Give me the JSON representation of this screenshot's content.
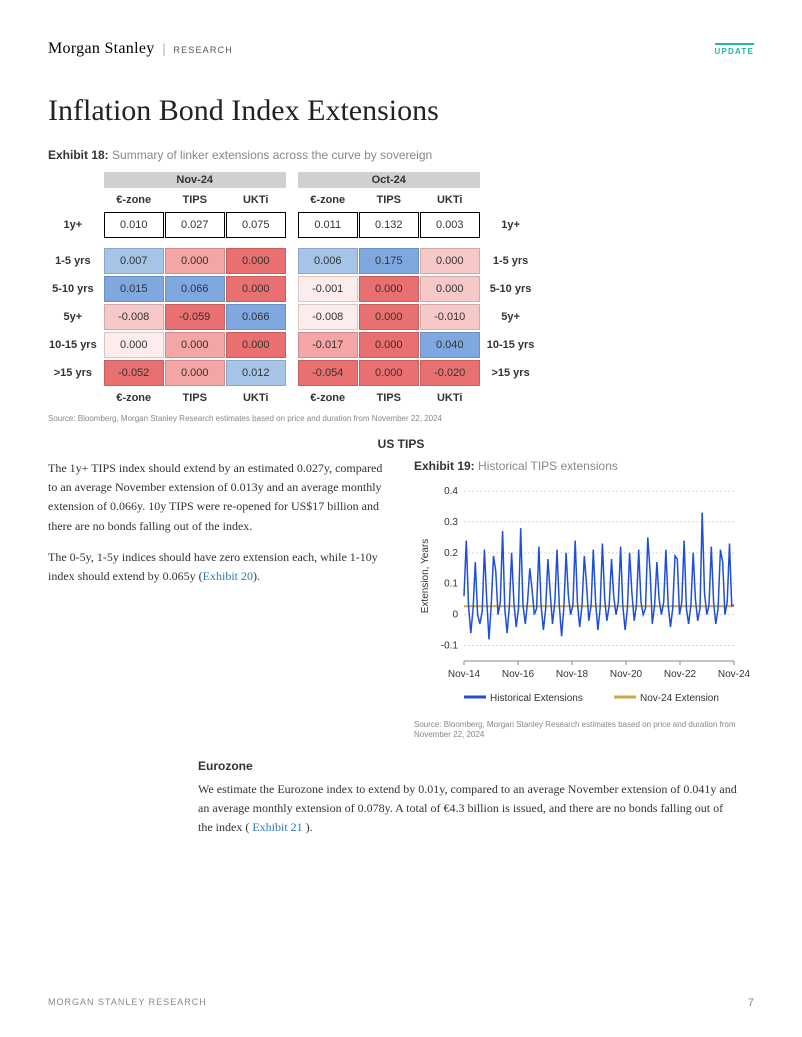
{
  "header": {
    "brand": "Morgan Stanley",
    "sub": "RESEARCH",
    "badge": "UPDATE"
  },
  "title": "Inflation Bond Index Extensions",
  "exhibit18": {
    "label_bold": "Exhibit 18:",
    "label_rest": "Summary of linker extensions across the curve by sovereign",
    "months": [
      "Nov-24",
      "Oct-24"
    ],
    "columns": [
      "€-zone",
      "TIPS",
      "UKTi"
    ],
    "row_labels": [
      "1y+",
      "1-5 yrs",
      "5-10 yrs",
      "5y+",
      "10-15 yrs",
      ">15 yrs"
    ],
    "top_row": {
      "nov": [
        "0.010",
        "0.027",
        "0.075"
      ],
      "oct": [
        "0.011",
        "0.132",
        "0.003"
      ]
    },
    "rows": [
      {
        "nov": [
          {
            "v": "0.007",
            "c": "#a6c4e8"
          },
          {
            "v": "0.000",
            "c": "#f4a6a6"
          },
          {
            "v": "0.000",
            "c": "#e87070"
          }
        ],
        "oct": [
          {
            "v": "0.006",
            "c": "#a6c4e8"
          },
          {
            "v": "0.175",
            "c": "#7fa8e0"
          },
          {
            "v": "0.000",
            "c": "#f6c8c8"
          }
        ]
      },
      {
        "nov": [
          {
            "v": "0.015",
            "c": "#7fa8e0"
          },
          {
            "v": "0.066",
            "c": "#7fa8e0"
          },
          {
            "v": "0.000",
            "c": "#e87070"
          }
        ],
        "oct": [
          {
            "v": "-0.001",
            "c": "#fdecec"
          },
          {
            "v": "0.000",
            "c": "#e87070"
          },
          {
            "v": "0.000",
            "c": "#f6c8c8"
          }
        ]
      },
      {
        "nov": [
          {
            "v": "-0.008",
            "c": "#f6c8c8"
          },
          {
            "v": "-0.059",
            "c": "#e87070"
          },
          {
            "v": "0.066",
            "c": "#7fa8e0"
          }
        ],
        "oct": [
          {
            "v": "-0.008",
            "c": "#fdecec"
          },
          {
            "v": "0.000",
            "c": "#e87070"
          },
          {
            "v": "-0.010",
            "c": "#f6c8c8"
          }
        ]
      },
      {
        "nov": [
          {
            "v": "0.000",
            "c": "#fdecec"
          },
          {
            "v": "0.000",
            "c": "#f4a6a6"
          },
          {
            "v": "0.000",
            "c": "#e87070"
          }
        ],
        "oct": [
          {
            "v": "-0.017",
            "c": "#f4a6a6"
          },
          {
            "v": "0.000",
            "c": "#e87070"
          },
          {
            "v": "0.040",
            "c": "#7fa8e0"
          }
        ]
      },
      {
        "nov": [
          {
            "v": "-0.052",
            "c": "#e87070"
          },
          {
            "v": "0.000",
            "c": "#f4a6a6"
          },
          {
            "v": "0.012",
            "c": "#a6c4e8"
          }
        ],
        "oct": [
          {
            "v": "-0.054",
            "c": "#e87070"
          },
          {
            "v": "0.000",
            "c": "#e87070"
          },
          {
            "v": "-0.020",
            "c": "#e87070"
          }
        ]
      }
    ],
    "source": "Source: Bloomberg, Morgan Stanley Research estimates based on price and duration from November 22, 2024"
  },
  "ustips": {
    "heading": "US TIPS",
    "p1": "The 1y+ TIPS index should extend by an estimated 0.027y, compared to an average November extension of 0.013y and an average monthly extension of 0.066y. 10y TIPS were re-opened for US$17 billion and there are no bonds falling out of the index.",
    "p2a": "The 0-5y, 1-5y indices should have zero extension each, while 1-10y index should extend by 0.065y (",
    "p2link": "Exhibit 20",
    "p2b": ")."
  },
  "exhibit19": {
    "label_bold": "Exhibit 19:",
    "label_rest": "Historical TIPS extensions",
    "type": "line",
    "y_label": "Extension, Years",
    "y_ticks": [
      "-0.1",
      "0",
      "0.1",
      "0.2",
      "0.3",
      "0.4"
    ],
    "ylim": [
      -0.15,
      0.4
    ],
    "x_ticks": [
      "Nov-14",
      "Nov-16",
      "Nov-18",
      "Nov-20",
      "Nov-22",
      "Nov-24"
    ],
    "legend": [
      {
        "label": "Historical Extensions",
        "color": "#1f4fd6"
      },
      {
        "label": "Nov-24 Extension",
        "color": "#c7a94a"
      }
    ],
    "nov24_value": 0.027,
    "background_color": "#ffffff",
    "grid_color": "#d8d8d8",
    "series": [
      0.06,
      0.24,
      0.03,
      -0.06,
      0.02,
      0.17,
      0.0,
      -0.03,
      0.01,
      0.21,
      0.05,
      -0.08,
      0.03,
      0.19,
      0.14,
      0.0,
      0.04,
      0.27,
      0.02,
      -0.06,
      0.03,
      0.2,
      0.04,
      -0.04,
      0.02,
      0.28,
      0.03,
      -0.03,
      0.04,
      0.15,
      0.08,
      0.0,
      0.02,
      0.22,
      0.03,
      -0.05,
      0.02,
      0.18,
      0.07,
      -0.03,
      0.04,
      0.21,
      0.03,
      -0.07,
      0.02,
      0.2,
      0.06,
      0.0,
      0.03,
      0.24,
      0.04,
      -0.04,
      0.03,
      0.19,
      0.1,
      -0.02,
      0.03,
      0.21,
      0.04,
      -0.05,
      0.02,
      0.23,
      0.05,
      -0.02,
      0.03,
      0.18,
      0.06,
      0.0,
      0.04,
      0.22,
      0.03,
      -0.05,
      0.02,
      0.2,
      0.07,
      -0.02,
      0.03,
      0.21,
      0.04,
      0.0,
      0.02,
      0.25,
      0.14,
      -0.03,
      0.03,
      0.17,
      0.05,
      0.0,
      0.04,
      0.21,
      0.03,
      -0.04,
      0.02,
      0.19,
      0.18,
      0.0,
      0.04,
      0.24,
      0.02,
      -0.03,
      0.03,
      0.2,
      0.05,
      -0.02,
      0.02,
      0.33,
      0.07,
      0.0,
      0.03,
      0.22,
      0.04,
      -0.03,
      0.02,
      0.21,
      0.17,
      0.0,
      0.04,
      0.23,
      0.03,
      0.03
    ],
    "source": "Source: Bloomberg, Morgan Stanley Research estimates based on price and duration from November 22, 2024"
  },
  "eurozone": {
    "heading": "Eurozone",
    "p1a": "We estimate the Eurozone index to extend by 0.01y, compared to an average November extension of 0.041y and an average monthly extension of 0.078y. A total of €4.3 billion is issued, and there are no bonds falling out of the index ( ",
    "p1link": "Exhibit 21",
    "p1b": " )."
  },
  "footer": {
    "left": "MORGAN STANLEY RESEARCH",
    "page": "7"
  }
}
